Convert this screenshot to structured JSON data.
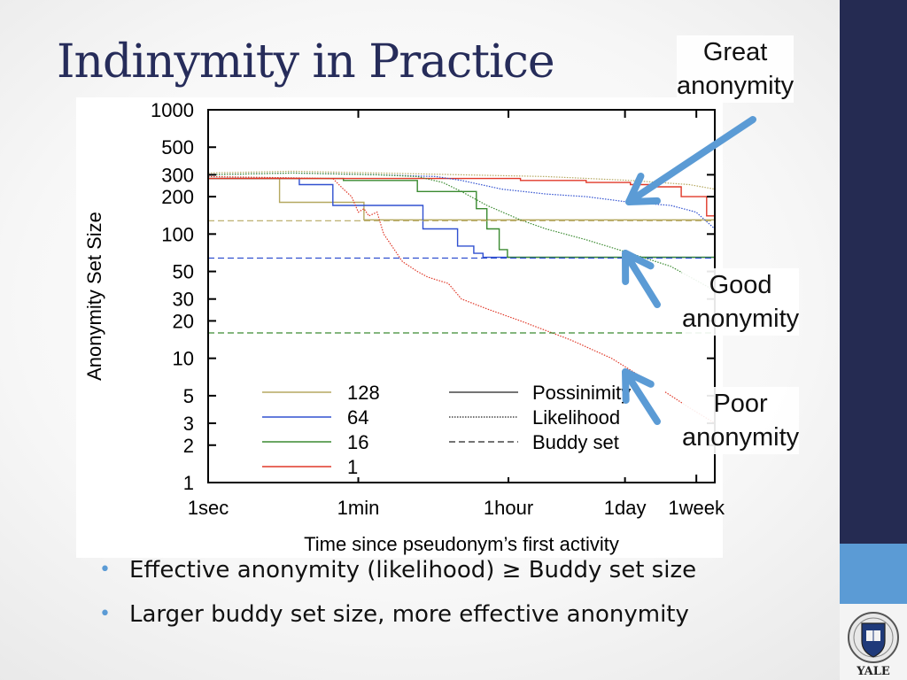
{
  "slide": {
    "title": "Indinymity in Practice",
    "callouts": {
      "great": [
        "Great",
        "anonymity"
      ],
      "good": [
        "Good",
        "anonymity"
      ],
      "poor": [
        "Poor",
        "anonymity"
      ]
    },
    "bullets": [
      "Effective anonymity (likelihood) ≥ Buddy set size",
      "Larger buddy set size, more effective anonymity"
    ],
    "logo_text": "YALE",
    "colors": {
      "sidebar_dark": "#252b52",
      "sidebar_light": "#5b9bd5",
      "title": "#262c5a",
      "arrow": "#5b9bd5"
    }
  },
  "chart_data": {
    "type": "line",
    "xlabel": "Time since pseudonym’s first activity",
    "ylabel": "Anonymity Set Size",
    "x_scale": "log",
    "y_scale": "log",
    "xlim": [
      1,
      1000000
    ],
    "ylim": [
      1,
      1000
    ],
    "x_ticks": [
      {
        "label": "1sec",
        "value": 1
      },
      {
        "label": "1min",
        "value": 60
      },
      {
        "label": "1hour",
        "value": 3600
      },
      {
        "label": "1day",
        "value": 86400
      },
      {
        "label": "1week",
        "value": 604800
      }
    ],
    "y_ticks": [
      {
        "label": "1000",
        "value": 1000
      },
      {
        "label": "500",
        "value": 500
      },
      {
        "label": "300",
        "value": 300
      },
      {
        "label": "200",
        "value": 200
      },
      {
        "label": "100",
        "value": 100
      },
      {
        "label": "50",
        "value": 50
      },
      {
        "label": "30",
        "value": 30
      },
      {
        "label": "20",
        "value": 20
      },
      {
        "label": "10",
        "value": 10
      },
      {
        "label": "5",
        "value": 5
      },
      {
        "label": "3",
        "value": 3
      },
      {
        "label": "2",
        "value": 2
      },
      {
        "label": "1",
        "value": 1
      }
    ],
    "legend": {
      "placement": "bottom-center",
      "colors": [
        {
          "label": "128",
          "color": "#b5a860"
        },
        {
          "label": "64",
          "color": "#3050d0"
        },
        {
          "label": "16",
          "color": "#3a8a30"
        },
        {
          "label": "1",
          "color": "#e03828"
        }
      ],
      "styles": [
        {
          "label": "Possinimity",
          "dash": "solid"
        },
        {
          "label": "Likelihood",
          "dash": "dotted"
        },
        {
          "label": "Buddy set",
          "dash": "dashed"
        }
      ]
    },
    "series": [
      {
        "color": "#b5a860",
        "style": "solid",
        "points": [
          [
            1,
            280
          ],
          [
            6,
            280
          ],
          [
            7,
            180
          ],
          [
            30,
            180
          ],
          [
            70,
            130
          ],
          [
            1000000,
            130
          ]
        ]
      },
      {
        "color": "#3050d0",
        "style": "solid",
        "points": [
          [
            1,
            280
          ],
          [
            10,
            280
          ],
          [
            12,
            250
          ],
          [
            25,
            250
          ],
          [
            30,
            170
          ],
          [
            250,
            170
          ],
          [
            350,
            110
          ],
          [
            800,
            110
          ],
          [
            900,
            80
          ],
          [
            1400,
            70
          ],
          [
            1800,
            65
          ],
          [
            1000000,
            65
          ]
        ]
      },
      {
        "color": "#3a8a30",
        "style": "solid",
        "points": [
          [
            1,
            280
          ],
          [
            20,
            280
          ],
          [
            40,
            270
          ],
          [
            150,
            270
          ],
          [
            300,
            220
          ],
          [
            900,
            220
          ],
          [
            1500,
            160
          ],
          [
            2000,
            110
          ],
          [
            2800,
            75
          ],
          [
            3500,
            65
          ],
          [
            1000000,
            65
          ]
        ]
      },
      {
        "color": "#e03828",
        "style": "solid",
        "points": [
          [
            1,
            280
          ],
          [
            150,
            280
          ],
          [
            500,
            280
          ],
          [
            5000,
            270
          ],
          [
            30000,
            260
          ],
          [
            100000,
            250
          ],
          [
            200000,
            240
          ],
          [
            400000,
            200
          ],
          [
            800000,
            140
          ],
          [
            1000000,
            100
          ]
        ]
      },
      {
        "color": "#b5a860",
        "style": "dotted",
        "points": [
          [
            1,
            310
          ],
          [
            10,
            320
          ],
          [
            100,
            310
          ],
          [
            1000,
            300
          ],
          [
            10000,
            290
          ],
          [
            100000,
            270
          ],
          [
            500000,
            250
          ],
          [
            1000000,
            230
          ]
        ]
      },
      {
        "color": "#3050d0",
        "style": "dotted",
        "points": [
          [
            1,
            300
          ],
          [
            10,
            310
          ],
          [
            100,
            300
          ],
          [
            500,
            290
          ],
          [
            1000,
            270
          ],
          [
            3000,
            230
          ],
          [
            10000,
            210
          ],
          [
            30000,
            200
          ],
          [
            100000,
            180
          ],
          [
            300000,
            170
          ],
          [
            600000,
            150
          ],
          [
            1000000,
            110
          ]
        ]
      },
      {
        "color": "#3a8a30",
        "style": "dotted",
        "points": [
          [
            1,
            300
          ],
          [
            10,
            310
          ],
          [
            100,
            300
          ],
          [
            300,
            290
          ],
          [
            600,
            260
          ],
          [
            1000,
            220
          ],
          [
            2000,
            170
          ],
          [
            5000,
            130
          ],
          [
            10000,
            110
          ],
          [
            30000,
            90
          ],
          [
            100000,
            70
          ],
          [
            300000,
            55
          ],
          [
            1000000,
            35
          ]
        ]
      },
      {
        "color": "#e03828",
        "style": "dotted",
        "points": [
          [
            1,
            290
          ],
          [
            30,
            280
          ],
          [
            40,
            230
          ],
          [
            50,
            200
          ],
          [
            60,
            150
          ],
          [
            70,
            160
          ],
          [
            80,
            140
          ],
          [
            100,
            150
          ],
          [
            120,
            100
          ],
          [
            150,
            80
          ],
          [
            200,
            60
          ],
          [
            300,
            50
          ],
          [
            400,
            45
          ],
          [
            700,
            40
          ],
          [
            1000,
            30
          ],
          [
            2000,
            25
          ],
          [
            5000,
            20
          ],
          [
            20000,
            14
          ],
          [
            60000,
            10
          ],
          [
            200000,
            6
          ],
          [
            500000,
            4
          ],
          [
            1000000,
            3
          ]
        ]
      },
      {
        "color": "#b5a860",
        "style": "dashed",
        "points": [
          [
            1,
            128
          ],
          [
            1000000,
            128
          ]
        ]
      },
      {
        "color": "#3050d0",
        "style": "dashed",
        "points": [
          [
            1,
            64
          ],
          [
            1000000,
            64
          ]
        ]
      },
      {
        "color": "#3a8a30",
        "style": "dashed",
        "points": [
          [
            1,
            16
          ],
          [
            1000000,
            16
          ]
        ]
      },
      {
        "color": "#e03828",
        "style": "dashed",
        "points": [
          [
            1,
            1
          ],
          [
            1000000,
            1
          ]
        ]
      }
    ]
  }
}
